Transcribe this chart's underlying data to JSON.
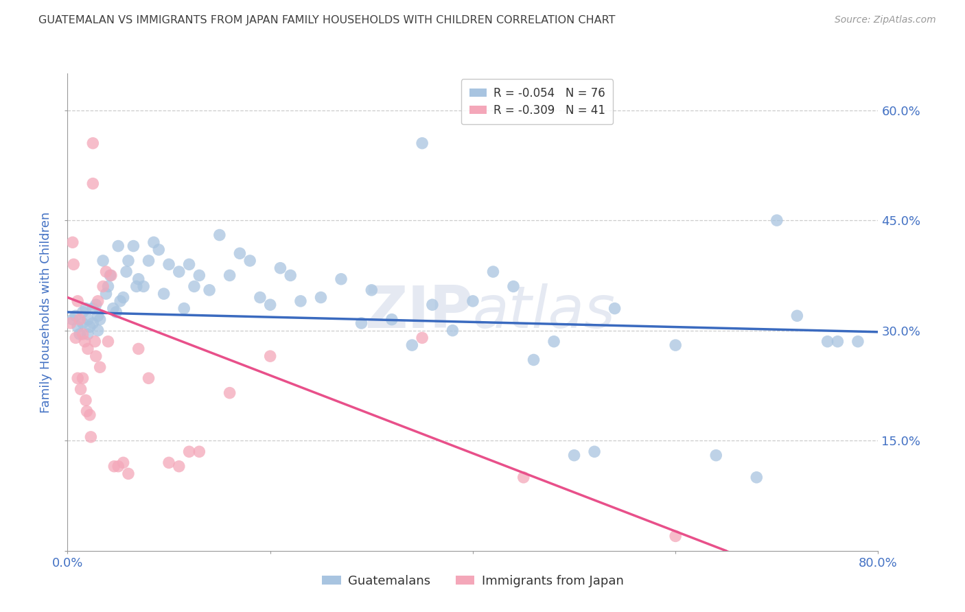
{
  "title": "GUATEMALAN VS IMMIGRANTS FROM JAPAN FAMILY HOUSEHOLDS WITH CHILDREN CORRELATION CHART",
  "source": "Source: ZipAtlas.com",
  "ylabel": "Family Households with Children",
  "xlim": [
    0.0,
    0.8
  ],
  "ylim": [
    0.0,
    0.65
  ],
  "yticks": [
    0.0,
    0.15,
    0.3,
    0.45,
    0.6
  ],
  "xticks": [
    0.0,
    0.2,
    0.4,
    0.6,
    0.8
  ],
  "blue_color": "#a8c4e0",
  "pink_color": "#f4a7b9",
  "blue_line_color": "#3a6abf",
  "pink_line_color": "#e8508a",
  "blue_R": "-0.054",
  "blue_N": "76",
  "pink_R": "-0.309",
  "pink_N": "41",
  "legend_label_blue": "Guatemalans",
  "legend_label_pink": "Immigrants from Japan",
  "background_color": "#ffffff",
  "grid_color": "#cccccc",
  "title_color": "#404040",
  "axis_label_color": "#4472c4",
  "tick_color": "#4472c4",
  "blue_line_x0": 0.0,
  "blue_line_y0": 0.325,
  "blue_line_x1": 0.8,
  "blue_line_y1": 0.298,
  "pink_line_x0": 0.0,
  "pink_line_y0": 0.345,
  "pink_line_x1": 0.65,
  "pink_line_y1": 0.0,
  "pink_line_dash_x0": 0.65,
  "pink_line_dash_x1": 0.78,
  "blue_scatter_x": [
    0.005,
    0.008,
    0.01,
    0.012,
    0.015,
    0.015,
    0.018,
    0.02,
    0.02,
    0.022,
    0.025,
    0.025,
    0.028,
    0.03,
    0.03,
    0.032,
    0.035,
    0.038,
    0.04,
    0.042,
    0.045,
    0.048,
    0.05,
    0.052,
    0.055,
    0.058,
    0.06,
    0.065,
    0.068,
    0.07,
    0.075,
    0.08,
    0.085,
    0.09,
    0.095,
    0.1,
    0.11,
    0.115,
    0.12,
    0.125,
    0.13,
    0.14,
    0.15,
    0.16,
    0.17,
    0.18,
    0.19,
    0.2,
    0.21,
    0.22,
    0.23,
    0.25,
    0.27,
    0.29,
    0.3,
    0.32,
    0.34,
    0.36,
    0.38,
    0.4,
    0.42,
    0.44,
    0.46,
    0.35,
    0.48,
    0.5,
    0.52,
    0.54,
    0.6,
    0.64,
    0.68,
    0.7,
    0.72,
    0.75,
    0.76,
    0.78
  ],
  "blue_scatter_y": [
    0.315,
    0.32,
    0.305,
    0.295,
    0.325,
    0.31,
    0.33,
    0.295,
    0.315,
    0.305,
    0.33,
    0.31,
    0.335,
    0.3,
    0.32,
    0.315,
    0.395,
    0.35,
    0.36,
    0.375,
    0.33,
    0.325,
    0.415,
    0.34,
    0.345,
    0.38,
    0.395,
    0.415,
    0.36,
    0.37,
    0.36,
    0.395,
    0.42,
    0.41,
    0.35,
    0.39,
    0.38,
    0.33,
    0.39,
    0.36,
    0.375,
    0.355,
    0.43,
    0.375,
    0.405,
    0.395,
    0.345,
    0.335,
    0.385,
    0.375,
    0.34,
    0.345,
    0.37,
    0.31,
    0.355,
    0.315,
    0.28,
    0.335,
    0.3,
    0.34,
    0.38,
    0.36,
    0.26,
    0.555,
    0.285,
    0.13,
    0.135,
    0.33,
    0.28,
    0.13,
    0.1,
    0.45,
    0.32,
    0.285,
    0.285,
    0.285
  ],
  "pink_scatter_x": [
    0.003,
    0.005,
    0.006,
    0.008,
    0.01,
    0.01,
    0.012,
    0.013,
    0.015,
    0.015,
    0.017,
    0.018,
    0.019,
    0.02,
    0.022,
    0.023,
    0.025,
    0.025,
    0.027,
    0.028,
    0.03,
    0.032,
    0.035,
    0.038,
    0.04,
    0.043,
    0.046,
    0.05,
    0.055,
    0.06,
    0.07,
    0.08,
    0.1,
    0.11,
    0.12,
    0.13,
    0.16,
    0.2,
    0.35,
    0.45,
    0.6
  ],
  "pink_scatter_y": [
    0.31,
    0.42,
    0.39,
    0.29,
    0.34,
    0.235,
    0.315,
    0.22,
    0.295,
    0.235,
    0.285,
    0.205,
    0.19,
    0.275,
    0.185,
    0.155,
    0.555,
    0.5,
    0.285,
    0.265,
    0.34,
    0.25,
    0.36,
    0.38,
    0.285,
    0.375,
    0.115,
    0.115,
    0.12,
    0.105,
    0.275,
    0.235,
    0.12,
    0.115,
    0.135,
    0.135,
    0.215,
    0.265,
    0.29,
    0.1,
    0.02
  ]
}
